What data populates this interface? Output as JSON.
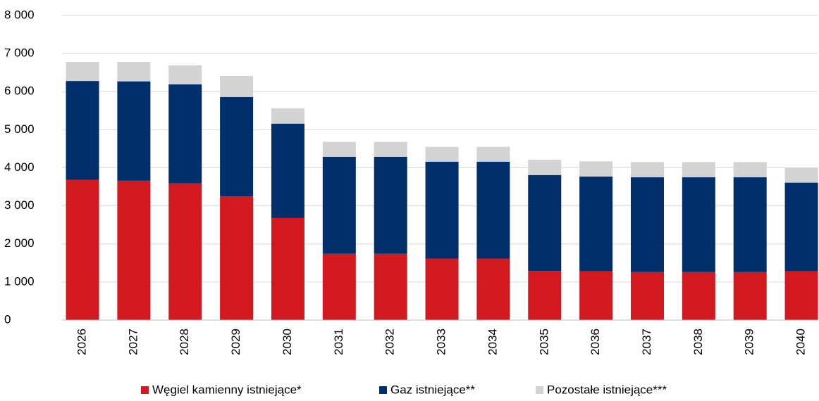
{
  "chart_data": {
    "type": "stacked_bar",
    "categories": [
      "2026",
      "2027",
      "2028",
      "2029",
      "2030",
      "2031",
      "2032",
      "2033",
      "2034",
      "2035",
      "2036",
      "2037",
      "2038",
      "2039",
      "2040"
    ],
    "series": [
      {
        "name": "Węgiel kamienny istniejące*",
        "color": "#d2191f",
        "values": [
          3680,
          3660,
          3590,
          3250,
          2680,
          1740,
          1740,
          1610,
          1610,
          1290,
          1280,
          1260,
          1260,
          1260,
          1280
        ]
      },
      {
        "name": "Gaz istniejące**",
        "color": "#002f6c",
        "values": [
          2600,
          2610,
          2600,
          2610,
          2480,
          2550,
          2550,
          2550,
          2550,
          2520,
          2490,
          2490,
          2490,
          2490,
          2330
        ]
      },
      {
        "name": "Pozostałe istniejące***",
        "color": "#d3d3d3",
        "values": [
          500,
          510,
          500,
          550,
          400,
          390,
          390,
          390,
          390,
          400,
          400,
          400,
          400,
          400,
          390
        ]
      }
    ],
    "ylim": [
      0,
      8000
    ],
    "yticks": [
      0,
      {
        "value": 1000,
        "label": "1 000"
      },
      {
        "value": 2000,
        "label": "2 000"
      },
      {
        "value": 3000,
        "label": "3 000"
      },
      {
        "value": 4000,
        "label": "4 000"
      },
      {
        "value": 5000,
        "label": "5 000"
      },
      {
        "value": 6000,
        "label": "6 000"
      },
      {
        "value": 7000,
        "label": "7 000"
      },
      {
        "value": 8000,
        "label": "8 000"
      }
    ],
    "grid": true
  }
}
